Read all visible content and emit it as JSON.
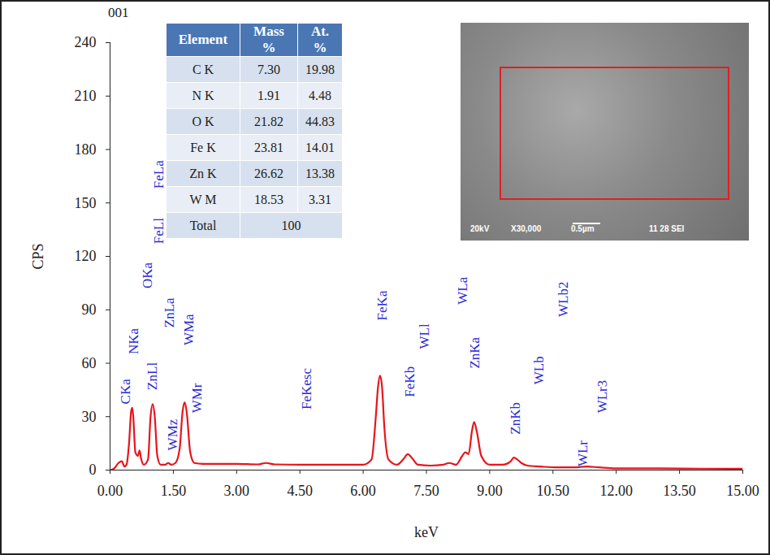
{
  "chart_data": {
    "type": "line",
    "title": "001",
    "x_label": "keV",
    "y_label": "CPS",
    "color": "#e8141c",
    "x": [
      0,
      0.1,
      0.2,
      0.28,
      0.34,
      0.39,
      0.45,
      0.5,
      0.525,
      0.55,
      0.6,
      0.66,
      0.7,
      0.74,
      0.8,
      0.9,
      0.96,
      1.01,
      1.06,
      1.12,
      1.2,
      1.3,
      1.38,
      1.45,
      1.55,
      1.65,
      1.72,
      1.77,
      1.82,
      1.9,
      2.0,
      2.2,
      2.5,
      3.0,
      3.5,
      3.7,
      3.9,
      4.5,
      5.0,
      5.5,
      6.0,
      6.2,
      6.3,
      6.35,
      6.4,
      6.45,
      6.5,
      6.6,
      6.8,
      6.95,
      7.06,
      7.15,
      7.3,
      7.6,
      7.9,
      8.04,
      8.2,
      8.35,
      8.42,
      8.5,
      8.58,
      8.63,
      8.7,
      8.8,
      9.0,
      9.3,
      9.5,
      9.57,
      9.65,
      9.75,
      9.9,
      10.2,
      10.6,
      11.0,
      11.3,
      11.6,
      12.0,
      13.0,
      14.0,
      15.0
    ],
    "values": [
      0,
      1,
      4,
      5,
      2,
      3,
      15,
      33,
      35,
      30,
      10,
      8,
      11,
      6,
      3,
      6,
      30,
      37,
      30,
      8,
      3,
      3,
      4,
      3,
      4,
      12,
      33,
      38,
      32,
      10,
      4,
      3.5,
      3.5,
      3.5,
      3.2,
      4,
      3.2,
      3,
      3,
      3,
      3,
      6,
      30,
      46,
      53,
      46,
      25,
      6,
      3,
      6,
      9,
      7,
      3,
      2.5,
      3,
      4,
      3,
      8,
      10,
      9,
      22,
      27,
      21,
      8,
      3,
      3,
      5,
      7,
      6,
      4,
      2.5,
      2,
      1.5,
      1.5,
      2,
      1.5,
      1,
      1,
      0.8,
      0.7
    ],
    "xlim": [
      0,
      15
    ],
    "xticks": [
      {
        "value": 0,
        "label": "0.00"
      },
      {
        "value": 1.5,
        "label": "1.50"
      },
      {
        "value": 3,
        "label": "3.00"
      },
      {
        "value": 4.5,
        "label": "4.50"
      },
      {
        "value": 6,
        "label": "6.00"
      },
      {
        "value": 7.5,
        "label": "7.50"
      },
      {
        "value": 9,
        "label": "9.00"
      },
      {
        "value": 10.5,
        "label": "10.50"
      },
      {
        "value": 12,
        "label": "12.00"
      },
      {
        "value": 13.5,
        "label": "13.50"
      },
      {
        "value": 15,
        "label": "15.00"
      }
    ],
    "ylim": [
      0,
      240
    ],
    "yticks": [
      0,
      30,
      60,
      90,
      120,
      150,
      180,
      210,
      240
    ],
    "grid": false,
    "annotations": [
      {
        "text": "CKa",
        "x": 0.36,
        "y": 37
      },
      {
        "text": "NKa",
        "x": 0.56,
        "y": 65
      },
      {
        "text": "OKa",
        "x": 0.88,
        "y": 102
      },
      {
        "text": "FeLl",
        "x": 1.15,
        "y": 127
      },
      {
        "text": "FeLa",
        "x": 1.15,
        "y": 158
      },
      {
        "text": "ZnLl",
        "x": 1.01,
        "y": 45
      },
      {
        "text": "ZnLa",
        "x": 1.41,
        "y": 80
      },
      {
        "text": "WMz",
        "x": 1.48,
        "y": 11
      },
      {
        "text": "WMa",
        "x": 1.86,
        "y": 70
      },
      {
        "text": "WMr",
        "x": 2.06,
        "y": 32
      },
      {
        "text": "FeKesc",
        "x": 4.67,
        "y": 34
      },
      {
        "text": "FeKa",
        "x": 6.46,
        "y": 84
      },
      {
        "text": "FeKb",
        "x": 7.11,
        "y": 41
      },
      {
        "text": "WLl",
        "x": 7.45,
        "y": 68
      },
      {
        "text": "WLa",
        "x": 8.35,
        "y": 93
      },
      {
        "text": "ZnKa",
        "x": 8.65,
        "y": 57
      },
      {
        "text": "ZnKb",
        "x": 9.61,
        "y": 20
      },
      {
        "text": "WLb",
        "x": 10.17,
        "y": 48
      },
      {
        "text": "WLb2",
        "x": 10.74,
        "y": 86
      },
      {
        "text": "WLr",
        "x": 11.2,
        "y": 2
      },
      {
        "text": "WLr3",
        "x": 11.67,
        "y": 32
      }
    ]
  },
  "table": {
    "columns": [
      "Element",
      "Mass %",
      "At. %"
    ],
    "rows": [
      [
        "C K",
        "7.30",
        "19.98"
      ],
      [
        "N K",
        "1.91",
        "4.48"
      ],
      [
        "O K",
        "21.82",
        "44.83"
      ],
      [
        "Fe K",
        "23.81",
        "14.01"
      ],
      [
        "Zn K",
        "26.62",
        "13.38"
      ],
      [
        "W M",
        "18.53",
        "3.31"
      ]
    ],
    "total": [
      "Total",
      "100"
    ]
  },
  "inset_image": {
    "labels": [
      "20kV",
      "X30,000",
      "0.5µm",
      "11 28 SEI"
    ]
  }
}
